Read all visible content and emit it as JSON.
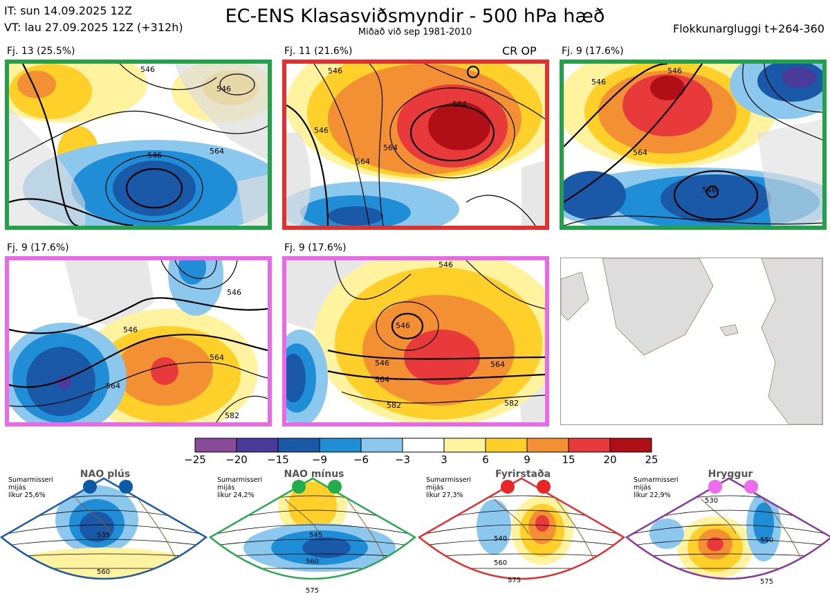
{
  "header": {
    "it_line": "IT: sun 14.09.2025 12Z",
    "vt_line": "VT: lau 27.09.2025 12Z  (+312h)",
    "title": "EC-ENS Klasasviðsmyndir - 500 hPa hæð",
    "subtitle": "Miðað við sep 1981-2010",
    "window_label": "Flokkunargluggi t+264-360"
  },
  "panels": [
    {
      "label": "Fj. 13 (25.5%)",
      "border_color": "#22a04a",
      "contours": [
        "546",
        "546",
        "546",
        "564"
      ]
    },
    {
      "label": "Fj. 11 (21.6%)",
      "border_color": "#e03030",
      "tag": "CR OP",
      "contours": [
        "546",
        "546",
        "564",
        "564",
        "564"
      ]
    },
    {
      "label": "Fj. 9 (17.6%)",
      "border_color": "#22a04a",
      "contours": [
        "546",
        "546",
        "546",
        "564"
      ]
    },
    {
      "label": "Fj. 9 (17.6%)",
      "border_color": "#e86ae8",
      "contours": [
        "546",
        "546",
        "564",
        "564",
        "582"
      ]
    },
    {
      "label": "Fj. 9 (17.6%)",
      "border_color": "#e86ae8",
      "contours": [
        "546",
        "546",
        "546",
        "564",
        "564",
        "582",
        "582"
      ]
    },
    {
      "label": "",
      "border_color": "#999999",
      "contours": []
    }
  ],
  "chart_data": {
    "type": "heatmap",
    "title": "EC-ENS Klasasviðsmyndir - 500 hPa hæð",
    "colorbar": {
      "ticks": [
        "−25",
        "−20",
        "−15",
        "−9",
        "−6",
        "−3",
        "3",
        "6",
        "9",
        "15",
        "20",
        "25"
      ],
      "tick_values": [
        -25,
        -20,
        -15,
        -9,
        -6,
        -3,
        3,
        6,
        9,
        15,
        20,
        25
      ],
      "colors": [
        "#8a4a9a",
        "#4a3a9a",
        "#1a58a8",
        "#1f8ed6",
        "#8cc8ee",
        "#ffffff",
        "#fff3a0",
        "#ffd02a",
        "#f39033",
        "#e83a3a",
        "#b01015"
      ]
    }
  },
  "regimes": [
    {
      "name": "NAO plús",
      "meta_line1": "Sumarmisseri",
      "meta_line2": "mijás",
      "meta_line3": "líkur 25,6%",
      "color": "#1a5aa8",
      "dot_color": "#0b5aa8",
      "contours": [
        "535",
        "560"
      ]
    },
    {
      "name": "NAO mínus",
      "meta_line1": "Sumarmisseri",
      "meta_line2": "mijás",
      "meta_line3": "líkur 24,2%",
      "color": "#28a850",
      "dot_color": "#1fae4a",
      "contours": [
        "545",
        "560",
        "575"
      ]
    },
    {
      "name": "Fyrirstaða",
      "meta_line1": "Sumarmisseri",
      "meta_line2": "mijás",
      "meta_line3": "líkur 27,3%",
      "color": "#e03030",
      "dot_color": "#e8262a",
      "contours": [
        "540",
        "560",
        "575"
      ]
    },
    {
      "name": "Hryggur",
      "meta_line1": "Sumarmisseri",
      "meta_line2": "mijás",
      "meta_line3": "líkur 22,9%",
      "color": "#8a3a9a",
      "dot_color": "#ee6aee",
      "contours": [
        "530",
        "550",
        "575"
      ]
    }
  ]
}
